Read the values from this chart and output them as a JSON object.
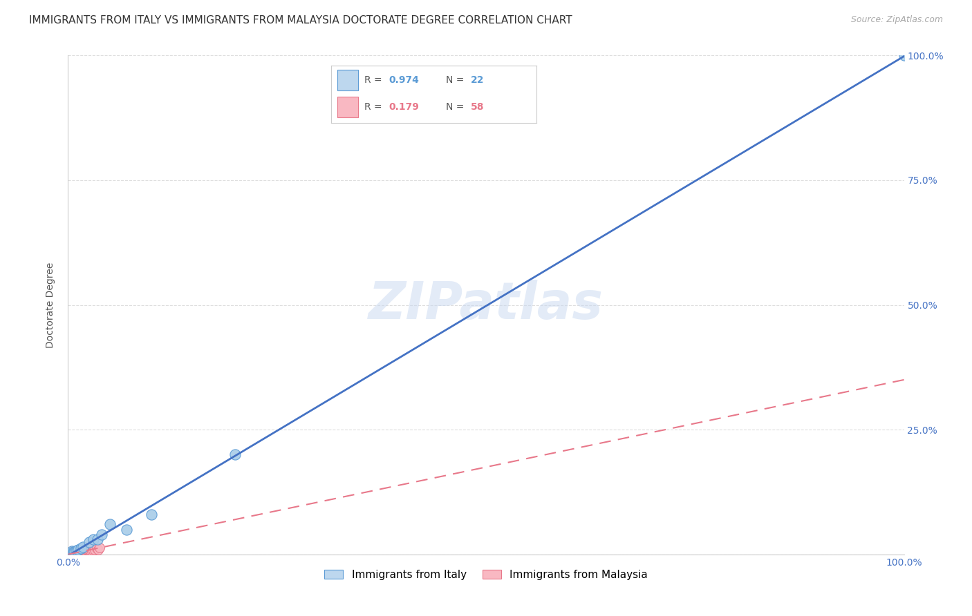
{
  "title": "IMMIGRANTS FROM ITALY VS IMMIGRANTS FROM MALAYSIA DOCTORATE DEGREE CORRELATION CHART",
  "source": "Source: ZipAtlas.com",
  "ylabel": "Doctorate Degree",
  "xlim": [
    0,
    1.0
  ],
  "ylim": [
    0,
    1.0
  ],
  "xticks": [
    0.0,
    0.25,
    0.5,
    0.75,
    1.0
  ],
  "yticks": [
    0.0,
    0.25,
    0.5,
    0.75,
    1.0
  ],
  "xticklabels": [
    "0.0%",
    "",
    "",
    "",
    "100.0%"
  ],
  "yticklabels_right": [
    "",
    "25.0%",
    "50.0%",
    "75.0%",
    "100.0%"
  ],
  "italy_color": "#a8cce8",
  "malaysia_color": "#f9b8c2",
  "italy_edge_color": "#5b9bd5",
  "malaysia_edge_color": "#e8788a",
  "italy_R": "0.974",
  "italy_N": "22",
  "malaysia_R": "0.179",
  "malaysia_N": "58",
  "legend_label_italy": "Immigrants from Italy",
  "legend_label_malaysia": "Immigrants from Malaysia",
  "watermark": "ZIPatlas",
  "italy_line_color": "#4472c4",
  "malaysia_line_color": "#e8788a",
  "italy_points_x": [
    0.001,
    0.002,
    0.003,
    0.004,
    0.005,
    0.005,
    0.006,
    0.007,
    0.008,
    0.01,
    0.012,
    0.015,
    0.018,
    0.025,
    0.03,
    0.035,
    0.04,
    0.05,
    0.07,
    0.1,
    0.2,
    1.0
  ],
  "italy_points_y": [
    0.001,
    0.002,
    0.003,
    0.002,
    0.004,
    0.006,
    0.005,
    0.005,
    0.004,
    0.008,
    0.01,
    0.012,
    0.015,
    0.025,
    0.03,
    0.03,
    0.04,
    0.06,
    0.05,
    0.08,
    0.2,
    1.0
  ],
  "malaysia_points_x": [
    0.001,
    0.001,
    0.001,
    0.001,
    0.002,
    0.002,
    0.002,
    0.003,
    0.003,
    0.003,
    0.004,
    0.004,
    0.004,
    0.005,
    0.005,
    0.005,
    0.005,
    0.006,
    0.006,
    0.007,
    0.007,
    0.008,
    0.008,
    0.009,
    0.009,
    0.01,
    0.01,
    0.011,
    0.012,
    0.012,
    0.013,
    0.013,
    0.014,
    0.015,
    0.015,
    0.016,
    0.016,
    0.017,
    0.018,
    0.018,
    0.019,
    0.02,
    0.02,
    0.021,
    0.022,
    0.022,
    0.023,
    0.024,
    0.025,
    0.026,
    0.027,
    0.028,
    0.029,
    0.03,
    0.032,
    0.034,
    0.036,
    0.038
  ],
  "malaysia_points_y": [
    0.001,
    0.002,
    0.003,
    0.004,
    0.001,
    0.002,
    0.003,
    0.001,
    0.002,
    0.003,
    0.001,
    0.003,
    0.005,
    0.001,
    0.002,
    0.004,
    0.006,
    0.002,
    0.004,
    0.002,
    0.005,
    0.002,
    0.004,
    0.003,
    0.005,
    0.002,
    0.006,
    0.003,
    0.002,
    0.005,
    0.003,
    0.007,
    0.004,
    0.003,
    0.006,
    0.004,
    0.007,
    0.004,
    0.005,
    0.008,
    0.005,
    0.004,
    0.008,
    0.005,
    0.004,
    0.01,
    0.006,
    0.008,
    0.005,
    0.007,
    0.006,
    0.012,
    0.007,
    0.008,
    0.01,
    0.012,
    0.009,
    0.013
  ],
  "background_color": "#ffffff",
  "grid_color": "#d0d0d0",
  "title_fontsize": 11,
  "axis_label_fontsize": 10,
  "tick_fontsize": 10,
  "tick_color": "#4472c4",
  "legend_box_color_italy": "#bdd7ee",
  "legend_box_color_malaysia": "#f9b8c2",
  "malaysia_line_slope": 0.35,
  "malaysia_line_intercept": 0.0
}
